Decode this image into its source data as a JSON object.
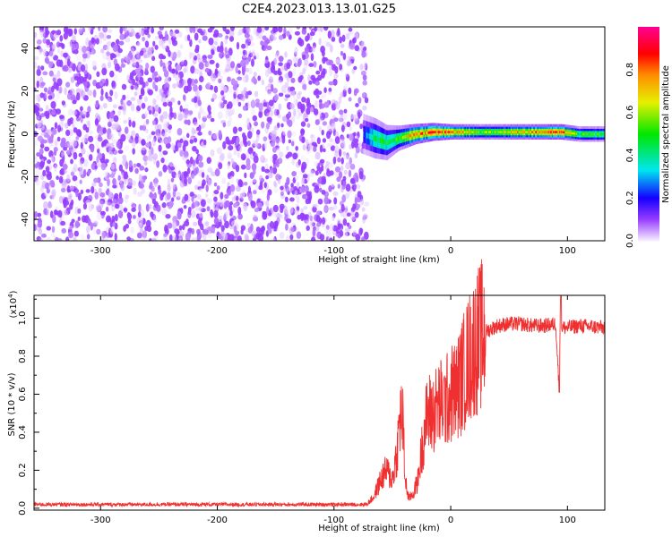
{
  "chart_data": [
    {
      "type": "heatmap",
      "title": "C2E4.2023.013.13.01.G25",
      "xlabel": "Height of straight line (km)",
      "ylabel": "Frequency (Hz)",
      "xlim": [
        -357,
        132
      ],
      "ylim": [
        -50,
        50
      ],
      "xticks": [
        "-300",
        "-200",
        "-100",
        "0",
        "100"
      ],
      "xtick_values": [
        -300,
        -200,
        -100,
        0,
        100
      ],
      "yticks": [
        "-40",
        "-20",
        "0",
        "20",
        "40"
      ],
      "ytick_values": [
        -40,
        -20,
        0,
        20,
        40
      ],
      "colorbar": {
        "label": "Normalized spectral amplitude",
        "ticks": [
          "0.0",
          "0.2",
          "0.4",
          "0.6",
          "0.8"
        ],
        "tick_values": [
          0,
          0.2,
          0.4,
          0.6,
          0.8
        ],
        "range": [
          0,
          1
        ]
      },
      "noise_region": {
        "x": [
          -357,
          -75
        ],
        "freq": [
          -50,
          50
        ],
        "amplitude_range": [
          0,
          0.15
        ]
      },
      "signal_ridge": [
        {
          "x": -75,
          "freq": 0,
          "peak": 0.25,
          "halfwidth": 8
        },
        {
          "x": -65,
          "freq": -2,
          "peak": 0.45,
          "halfwidth": 8
        },
        {
          "x": -55,
          "freq": -4,
          "peak": 0.5,
          "halfwidth": 7
        },
        {
          "x": -45,
          "freq": -2,
          "peak": 0.55,
          "halfwidth": 5
        },
        {
          "x": -30,
          "freq": 0,
          "peak": 0.85,
          "halfwidth": 4
        },
        {
          "x": -15,
          "freq": 1,
          "peak": 0.9,
          "halfwidth": 3.5
        },
        {
          "x": 0,
          "freq": 1,
          "peak": 0.85,
          "halfwidth": 3
        },
        {
          "x": 30,
          "freq": 1,
          "peak": 0.6,
          "halfwidth": 3
        },
        {
          "x": 60,
          "freq": 1,
          "peak": 0.8,
          "halfwidth": 3
        },
        {
          "x": 95,
          "freq": 1,
          "peak": 0.9,
          "halfwidth": 3
        },
        {
          "x": 110,
          "freq": 0,
          "peak": 0.55,
          "halfwidth": 3
        },
        {
          "x": 132,
          "freq": 0,
          "peak": 0.55,
          "halfwidth": 3
        }
      ]
    },
    {
      "type": "line",
      "xlabel": "Height of straight line (km)",
      "ylabel": "SNR (10 * v/v)",
      "yscale_label": "(x10",
      "yscale_exp": "4",
      "yscale_close": ")",
      "xlim": [
        -357,
        132
      ],
      "ylim": [
        -0.01,
        1.12
      ],
      "xticks": [
        "-300",
        "-200",
        "-100",
        "0",
        "100"
      ],
      "xtick_values": [
        -300,
        -200,
        -100,
        0,
        100
      ],
      "yticks": [
        "0.0",
        "0.2",
        "0.4",
        "0.6",
        "0.8",
        "1.0"
      ],
      "ytick_values": [
        0,
        0.2,
        0.4,
        0.6,
        0.8,
        1.0
      ],
      "series": [
        {
          "name": "SNR",
          "color": "#f03030",
          "x": [
            -357,
            -72,
            -66,
            -60,
            -55,
            -50,
            -46,
            -43,
            -41,
            -39,
            -36,
            -32,
            -28,
            -24,
            -20,
            -15,
            -10,
            -5,
            0,
            5,
            10,
            15,
            20,
            25,
            30,
            40,
            50,
            60,
            70,
            80,
            90,
            93,
            94,
            95,
            100,
            110,
            132
          ],
          "y": [
            0.02,
            0.02,
            0.06,
            0.15,
            0.2,
            0.15,
            0.3,
            0.5,
            0.45,
            0.15,
            0.05,
            0.08,
            0.15,
            0.35,
            0.5,
            0.5,
            0.55,
            0.55,
            0.6,
            0.62,
            0.7,
            0.78,
            0.85,
            0.9,
            0.93,
            0.96,
            0.97,
            0.97,
            0.96,
            0.96,
            0.97,
            0.61,
            1.12,
            0.95,
            0.95,
            0.96,
            0.95
          ]
        }
      ]
    }
  ]
}
